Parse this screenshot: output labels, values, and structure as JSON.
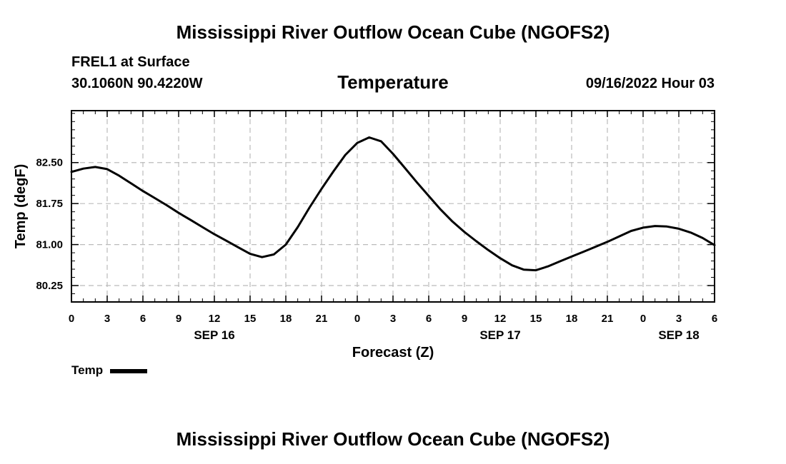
{
  "page": {
    "title": "Mississippi River Outflow Ocean Cube (NGOFS2)",
    "station": "FREL1 at Surface",
    "coords": "30.1060N  90.4220W",
    "datetime": "09/16/2022 Hour 03",
    "footer_title": "Mississippi River Outflow Ocean Cube (NGOFS2)"
  },
  "chart_data": {
    "type": "line",
    "title": "Temperature",
    "xlabel": "Forecast (Z)",
    "ylabel": "Temp (degF)",
    "xlim": [
      0,
      54
    ],
    "ylim": [
      79.95,
      83.45
    ],
    "x_ticks": [
      0,
      3,
      6,
      9,
      12,
      15,
      18,
      21,
      24,
      27,
      30,
      33,
      36,
      39,
      42,
      45,
      48,
      51,
      54
    ],
    "x_tick_labels": [
      "0",
      "3",
      "6",
      "9",
      "12",
      "15",
      "18",
      "21",
      "0",
      "3",
      "6",
      "9",
      "12",
      "15",
      "18",
      "21",
      "0",
      "3",
      "6"
    ],
    "y_ticks": [
      80.25,
      81.0,
      81.75,
      82.5
    ],
    "y_tick_labels": [
      "80.25",
      "81.00",
      "81.75",
      "82.50"
    ],
    "date_labels": [
      {
        "x": 12,
        "label": "SEP 16"
      },
      {
        "x": 36,
        "label": "SEP 17"
      },
      {
        "x": 51,
        "label": "SEP 18"
      }
    ],
    "grid": true,
    "legend_position": "bottom-left",
    "series": [
      {
        "name": "Temp",
        "color": "#000000",
        "x": [
          0,
          1,
          2,
          3,
          4,
          5,
          6,
          7,
          8,
          9,
          10,
          11,
          12,
          13,
          14,
          15,
          16,
          17,
          18,
          19,
          20,
          21,
          22,
          23,
          24,
          25,
          26,
          27,
          28,
          29,
          30,
          31,
          32,
          33,
          34,
          35,
          36,
          37,
          38,
          39,
          40,
          41,
          42,
          43,
          44,
          45,
          46,
          47,
          48,
          49,
          50,
          51,
          52,
          53,
          54
        ],
        "values": [
          82.33,
          82.39,
          82.42,
          82.38,
          82.26,
          82.12,
          81.98,
          81.85,
          81.72,
          81.58,
          81.45,
          81.32,
          81.19,
          81.07,
          80.95,
          80.83,
          80.77,
          80.82,
          81.0,
          81.32,
          81.68,
          82.02,
          82.34,
          82.64,
          82.86,
          82.96,
          82.89,
          82.66,
          82.4,
          82.14,
          81.89,
          81.64,
          81.42,
          81.23,
          81.06,
          80.9,
          80.75,
          80.62,
          80.54,
          80.53,
          80.6,
          80.69,
          80.78,
          80.87,
          80.96,
          81.05,
          81.15,
          81.25,
          81.31,
          81.34,
          81.33,
          81.29,
          81.22,
          81.12,
          80.99
        ]
      }
    ]
  }
}
